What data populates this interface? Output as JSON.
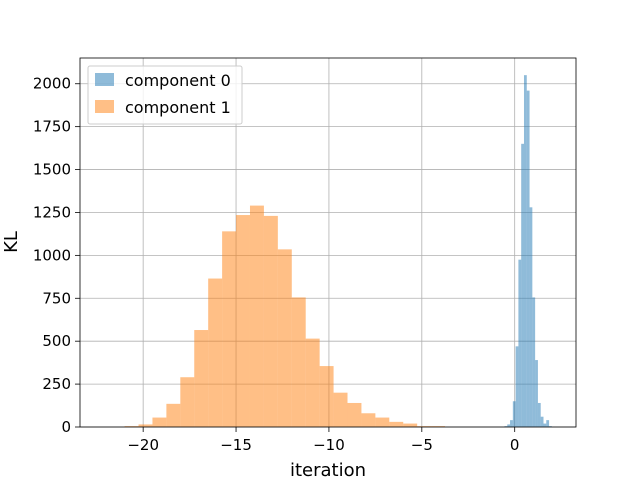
{
  "chart_data": {
    "type": "histogram",
    "xlabel": "iteration",
    "ylabel": "KL",
    "xlim": [
      -23.4,
      3.3
    ],
    "ylim": [
      0,
      2150
    ],
    "xticks": [
      -20,
      -15,
      -10,
      -5,
      0
    ],
    "xtick_labels": [
      "−20",
      "−15",
      "−10",
      "−5",
      "0"
    ],
    "yticks": [
      0,
      250,
      500,
      750,
      1000,
      1250,
      1500,
      1750,
      2000
    ],
    "ytick_labels": [
      "0",
      "250",
      "500",
      "750",
      "1000",
      "1250",
      "1500",
      "1750",
      "2000"
    ],
    "grid": true,
    "legend_position": "upper-left",
    "series": [
      {
        "name": "component 0",
        "color": "#1f77b4",
        "alpha": 0.5,
        "bin_edges": [
          -0.55,
          -0.4,
          -0.25,
          -0.1,
          0.05,
          0.2,
          0.35,
          0.5,
          0.65,
          0.8,
          0.95,
          1.1,
          1.25,
          1.4,
          1.55,
          1.7,
          1.85,
          2.0
        ],
        "counts": [
          5,
          15,
          40,
          150,
          470,
          975,
          1650,
          2050,
          1960,
          1280,
          755,
          390,
          140,
          60,
          20,
          40,
          5
        ]
      },
      {
        "name": "component 1",
        "color": "#ff7f0e",
        "alpha": 0.5,
        "bin_edges": [
          -21.0,
          -20.25,
          -19.5,
          -18.75,
          -18.0,
          -17.25,
          -16.5,
          -15.75,
          -15.0,
          -14.25,
          -13.5,
          -12.75,
          -12.0,
          -11.25,
          -10.5,
          -9.75,
          -9.0,
          -8.25,
          -7.5,
          -6.75,
          -6.0,
          -5.25,
          -4.5,
          -3.75
        ],
        "counts": [
          5,
          15,
          55,
          135,
          290,
          565,
          865,
          1140,
          1235,
          1290,
          1230,
          1035,
          755,
          515,
          355,
          200,
          140,
          80,
          55,
          30,
          20,
          5,
          5
        ]
      }
    ]
  }
}
